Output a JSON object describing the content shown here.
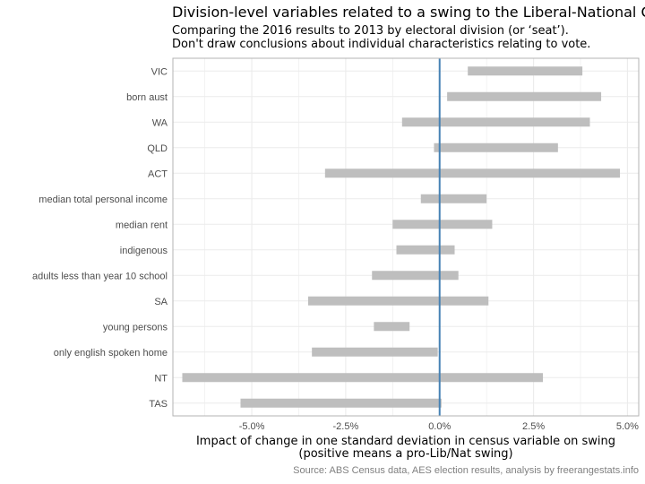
{
  "chart_data": {
    "type": "bar",
    "orientation": "horizontal-range",
    "title": "Division-level variables related to a swing to the Liberal-National Co",
    "subtitle_lines": [
      "Comparing the 2016 results to 2013 by electoral division (or ‘seat’).",
      "Don't draw conclusions about individual characteristics relating to vote."
    ],
    "xlabel_lines": [
      "Impact of change in one standard deviation in census variable on swing",
      "(positive means a pro-Lib/Nat swing)"
    ],
    "caption": "Source: ABS Census data, AES election results, analysis by freerangestats.info",
    "categories": [
      "VIC",
      "born aust",
      "WA",
      "QLD",
      "ACT",
      "median total personal income",
      "median rent",
      "indigenous",
      "adults less than year 10 school",
      "SA",
      "young persons",
      "only english spoken home",
      "NT",
      "TAS"
    ],
    "series": [
      {
        "low": [
          0.75,
          0.2,
          -1.0,
          -0.15,
          -3.05,
          -0.5,
          -1.25,
          -1.15,
          -1.8,
          -3.5,
          -1.75,
          -3.4,
          -6.85,
          -5.3
        ],
        "high": [
          3.8,
          4.3,
          4.0,
          3.15,
          4.8,
          1.25,
          1.4,
          0.4,
          0.5,
          1.3,
          -0.8,
          -0.05,
          2.75,
          0.05
        ]
      }
    ],
    "xticks": [
      "-5.0%",
      "-2.5%",
      "0.0%",
      "2.5%",
      "5.0%"
    ],
    "xtick_values": [
      -5,
      -2.5,
      0,
      2.5,
      5
    ],
    "xlim": [
      -7.1,
      5.3
    ],
    "reference_line": 0,
    "grid": true,
    "colors": {
      "bar": "#bebebe",
      "zero_line": "#4682b4",
      "grid": "#ebebeb",
      "panel_border": "#b3b3b3"
    }
  }
}
